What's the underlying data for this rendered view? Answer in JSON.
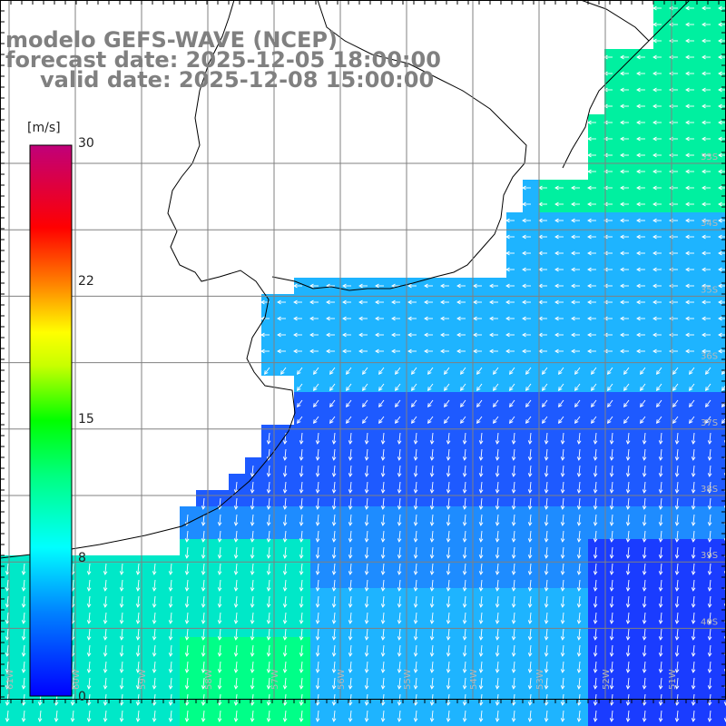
{
  "title": {
    "model": "modelo GEFS-WAVE (NCEP)",
    "forecast": "forecast date: 2025-12-05 18:00:00",
    "valid": "valid date: 2025-12-08 15:00:00"
  },
  "colorbar": {
    "unit": "[m/s]",
    "min": 0,
    "max": 30,
    "ticks": [
      "30",
      "22",
      "15",
      "8",
      "0"
    ],
    "tick_values": [
      30,
      22,
      15,
      8,
      0
    ],
    "colors": [
      "#0000ff",
      "#00c8ff",
      "#00ffc8",
      "#00ff00",
      "#c8ff00",
      "#ffff00",
      "#ff8000",
      "#ff0000",
      "#c0007a"
    ]
  },
  "lat_labels": [
    "33S",
    "34S",
    "35S",
    "36S",
    "37S",
    "38S",
    "39S",
    "40S"
  ],
  "lon_labels": [
    "61W",
    "60W",
    "59W",
    "58W",
    "57W",
    "56W",
    "55W",
    "54W",
    "53W",
    "52W",
    "51W"
  ],
  "colors": {
    "ocean_dark": "#1a3cff",
    "ocean_mid": "#1e90ff",
    "ocean_cyan": "#00d8ff",
    "ocean_green": "#00ff88",
    "land": "#ffffff",
    "coast": "#000000",
    "grid": "#808080",
    "arrow": "#ffffff"
  }
}
